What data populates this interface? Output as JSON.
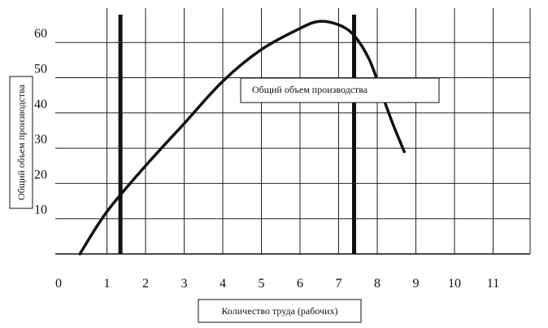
{
  "chart_data": {
    "type": "line",
    "title": "",
    "xlabel": "Количество труда (рабочих)",
    "ylabel": "Общий объем производства",
    "xlim": [
      0,
      11.4
    ],
    "ylim": [
      0,
      70
    ],
    "x_ticks": [
      "0",
      "1",
      "2",
      "3",
      "4",
      "5",
      "6",
      "7",
      "8",
      "9",
      "10",
      "11"
    ],
    "y_ticks": [
      "10",
      "20",
      "30",
      "40",
      "50",
      "60"
    ],
    "grid": true,
    "legend": "Общий объем производства",
    "series": [
      {
        "name": "Общий объем производства",
        "x": [
          0.3,
          1,
          2,
          3,
          4,
          5,
          6,
          6.5,
          7,
          7.4,
          7.8,
          8.1,
          8.4,
          8.7
        ],
        "y": [
          0,
          12,
          25,
          37,
          49,
          58,
          64,
          66,
          65,
          62,
          55,
          46,
          37,
          29
        ]
      }
    ],
    "vertical_lines": [
      1.35,
      7.4
    ]
  }
}
